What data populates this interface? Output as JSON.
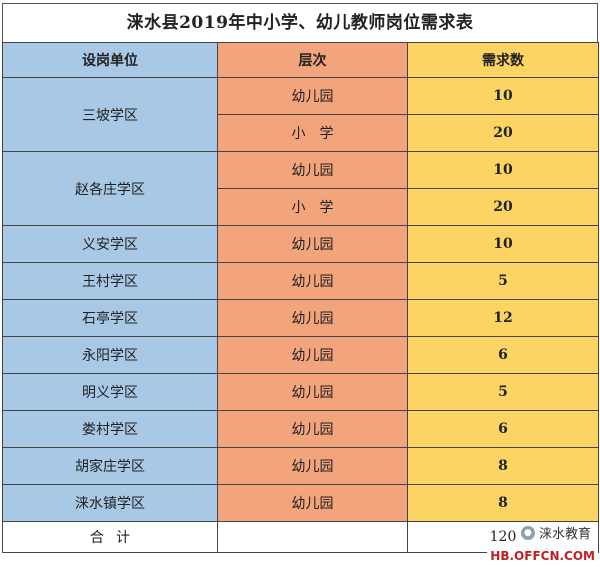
{
  "title": "涞水县2019年中小学、幼儿教师岗位需求表",
  "headers": {
    "unit": "设岗单位",
    "level": "层次",
    "demand": "需求数"
  },
  "rows": [
    {
      "unit": "三坡学区",
      "level": "幼儿园",
      "demand": "10"
    },
    {
      "unit": "",
      "level": "小　学",
      "demand": "20"
    },
    {
      "unit": "赵各庄学区",
      "level": "幼儿园",
      "demand": "10"
    },
    {
      "unit": "",
      "level": "小　学",
      "demand": "20"
    },
    {
      "unit": "义安学区",
      "level": "幼儿园",
      "demand": "10"
    },
    {
      "unit": "王村学区",
      "level": "幼儿园",
      "demand": "5"
    },
    {
      "unit": "石亭学区",
      "level": "幼儿园",
      "demand": "12"
    },
    {
      "unit": "永阳学区",
      "level": "幼儿园",
      "demand": "6"
    },
    {
      "unit": "明义学区",
      "level": "幼儿园",
      "demand": "5"
    },
    {
      "unit": "娄村学区",
      "level": "幼儿园",
      "demand": "6"
    },
    {
      "unit": "胡家庄学区",
      "level": "幼儿园",
      "demand": "8"
    },
    {
      "unit": "涞水镇学区",
      "level": "幼儿园",
      "demand": "8"
    }
  ],
  "total": {
    "label": "合计",
    "level": "",
    "demand": "120"
  },
  "watermark": {
    "text": "涞水教育",
    "icon": "wechat-icon"
  },
  "site": "HB.OFFCN.COM"
}
